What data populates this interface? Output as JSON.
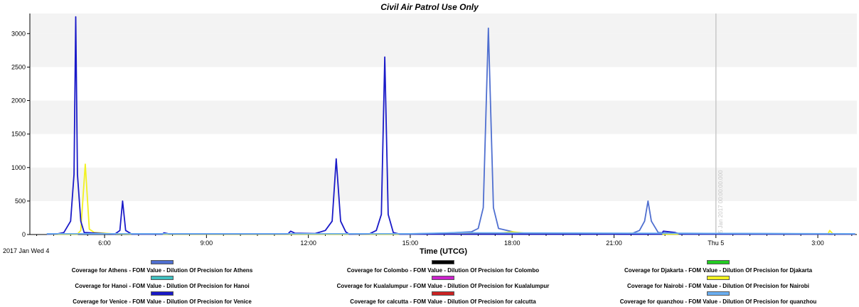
{
  "chart_data": {
    "type": "line",
    "title": "Civil Air Patrol Use Only",
    "xlabel": "Time (UTCG)",
    "ylabel": "",
    "xlim": [
      3.8,
      28.15
    ],
    "ylim": [
      0,
      3300
    ],
    "y_ticks": [
      0,
      500,
      1000,
      1500,
      2000,
      2500,
      3000
    ],
    "x_ticks": [
      {
        "t": 6,
        "label": "6:00"
      },
      {
        "t": 9,
        "label": "9:00"
      },
      {
        "t": 12,
        "label": "12:00"
      },
      {
        "t": 15,
        "label": "15:00"
      },
      {
        "t": 18,
        "label": "18:00"
      },
      {
        "t": 21,
        "label": "21:00"
      },
      {
        "t": 24,
        "label": "Thu 5"
      },
      {
        "t": 27,
        "label": "3:00"
      }
    ],
    "x_start_label": "2017 Jan Wed 4",
    "marker": {
      "t": 24,
      "label": "5 Jan 2017 00:00:00.000"
    },
    "grid": "horizontal bands",
    "legend_position": "bottom",
    "series": [
      {
        "name": "Coverage for Athens - FOM Value - Dilution Of Precision for Athens",
        "color": "#4f6fd0",
        "points": [
          [
            4.3,
            10
          ],
          [
            14.9,
            10
          ],
          [
            16.0,
            20
          ],
          [
            16.8,
            40
          ],
          [
            17.0,
            90
          ],
          [
            17.15,
            400
          ],
          [
            17.3,
            3080
          ],
          [
            17.45,
            400
          ],
          [
            17.6,
            90
          ],
          [
            18.2,
            20
          ],
          [
            21.5,
            10
          ],
          [
            21.75,
            60
          ],
          [
            21.9,
            200
          ],
          [
            22.0,
            500
          ],
          [
            22.1,
            200
          ],
          [
            22.3,
            30
          ],
          [
            22.6,
            20
          ],
          [
            27.0,
            10
          ],
          [
            28.1,
            10
          ]
        ]
      },
      {
        "name": "Coverage for Colombo - FOM Value - Dilution Of Precision for Colombo",
        "color": "#000000",
        "points": []
      },
      {
        "name": "Coverage for Djakarta - FOM Value - Dilution Of Precision for Djakarta",
        "color": "#22cc22",
        "points": []
      },
      {
        "name": "Coverage for Hanoi - FOM Value - Dilution Of Precision for Hanoi",
        "color": "#40c0c0",
        "points": []
      },
      {
        "name": "Coverage for Kualalumpur - FOM Value - Dilution Of Precision for Kualalumpur",
        "color": "#cc22cc",
        "points": []
      },
      {
        "name": "Coverage for Nairobi - FOM Value - Dilution Of Precision for Nairobi",
        "color": "#f2f220",
        "points": [
          [
            4.3,
            5
          ],
          [
            5.2,
            5
          ],
          [
            5.3,
            60
          ],
          [
            5.43,
            1050
          ],
          [
            5.55,
            80
          ],
          [
            5.7,
            30
          ],
          [
            6.0,
            20
          ],
          [
            6.3,
            10
          ],
          [
            7.0,
            5
          ],
          [
            16.2,
            5
          ],
          [
            17.6,
            20
          ],
          [
            18.0,
            40
          ],
          [
            18.5,
            15
          ],
          [
            20.0,
            10
          ],
          [
            21.0,
            5
          ],
          [
            21.5,
            20
          ],
          [
            21.9,
            10
          ],
          [
            22.5,
            5
          ],
          [
            27.3,
            5
          ],
          [
            27.35,
            60
          ],
          [
            27.45,
            5
          ],
          [
            28.1,
            5
          ]
        ]
      },
      {
        "name": "Coverage for Venice - FOM Value - Dilution Of Precision for Venice",
        "color": "#1a1ac8",
        "points": [
          [
            4.3,
            5
          ],
          [
            4.6,
            10
          ],
          [
            4.8,
            30
          ],
          [
            5.0,
            200
          ],
          [
            5.1,
            900
          ],
          [
            5.15,
            3250
          ],
          [
            5.2,
            900
          ],
          [
            5.3,
            200
          ],
          [
            5.4,
            30
          ],
          [
            6.3,
            5
          ],
          [
            6.45,
            60
          ],
          [
            6.53,
            500
          ],
          [
            6.62,
            60
          ],
          [
            6.8,
            5
          ],
          [
            7.7,
            5
          ],
          [
            7.75,
            25
          ],
          [
            7.9,
            10
          ],
          [
            11.4,
            10
          ],
          [
            11.48,
            50
          ],
          [
            11.6,
            20
          ],
          [
            12.2,
            15
          ],
          [
            12.5,
            60
          ],
          [
            12.7,
            200
          ],
          [
            12.82,
            1130
          ],
          [
            12.95,
            200
          ],
          [
            13.1,
            40
          ],
          [
            13.2,
            5
          ],
          [
            13.8,
            10
          ],
          [
            14.0,
            60
          ],
          [
            14.15,
            300
          ],
          [
            14.25,
            2650
          ],
          [
            14.35,
            300
          ],
          [
            14.5,
            30
          ],
          [
            14.7,
            5
          ],
          [
            22.4,
            5
          ],
          [
            22.45,
            50
          ],
          [
            22.8,
            30
          ],
          [
            22.95,
            5
          ],
          [
            28.1,
            5
          ]
        ]
      },
      {
        "name": "Coverage for calcutta - FOM Value - Dilution Of Precision for calcutta",
        "color": "#cc2222",
        "points": []
      },
      {
        "name": "Coverage for quanzhou - FOM Value - Dilution Of Precision for quanzhou",
        "color": "#6aaef0",
        "points": [
          [
            4.3,
            12
          ],
          [
            15.0,
            12
          ],
          [
            16.5,
            30
          ],
          [
            17.0,
            25
          ],
          [
            28.1,
            12
          ]
        ]
      }
    ]
  }
}
